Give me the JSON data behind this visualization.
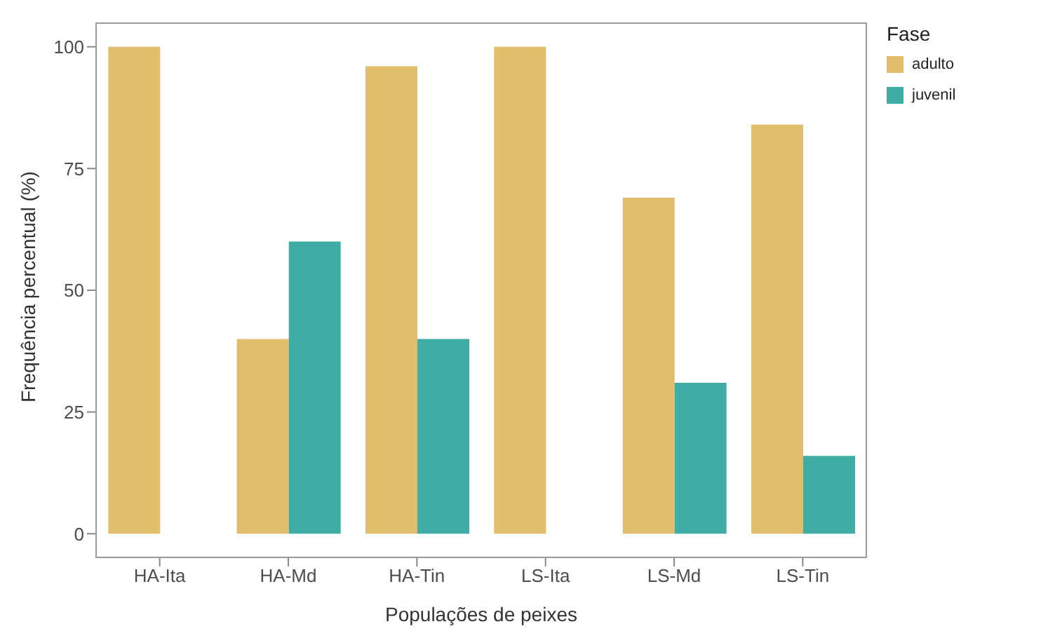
{
  "chart_data": {
    "type": "bar",
    "xlabel": "Populações de peixes",
    "ylabel": "Frequência percentual (%)",
    "legend_title": "Fase",
    "categories": [
      "HA-Ita",
      "HA-Md",
      "HA-Tin",
      "LS-Ita",
      "LS-Md",
      "LS-Tin"
    ],
    "series": [
      {
        "name": "adulto",
        "color": "#e2bd6b",
        "values": [
          100,
          40,
          96,
          100,
          69,
          84
        ]
      },
      {
        "name": "juvenil",
        "color": "#3fada5",
        "values": [
          null,
          60,
          40,
          null,
          31,
          16
        ]
      }
    ],
    "ylim": [
      -5,
      105
    ],
    "yticks": [
      0,
      25,
      50,
      75,
      100
    ],
    "grid": false,
    "legend": "right"
  }
}
